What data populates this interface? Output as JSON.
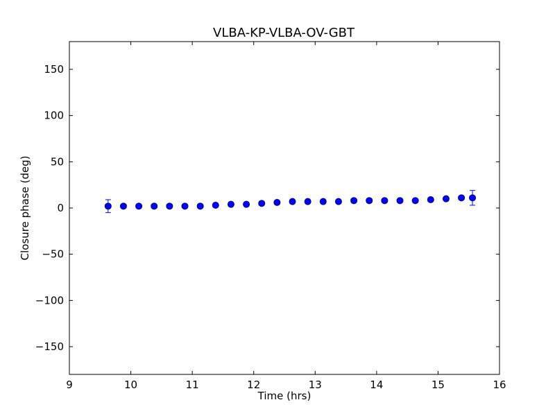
{
  "chart_data": {
    "type": "scatter",
    "title": "VLBA-KP-VLBA-OV-GBT",
    "xlabel": "Time (hrs)",
    "ylabel": "Closure phase (deg)",
    "xlim": [
      9,
      16
    ],
    "ylim": [
      -180,
      180
    ],
    "xticks": [
      9,
      10,
      11,
      12,
      13,
      14,
      15,
      16
    ],
    "xtick_labels": [
      "9",
      "10",
      "11",
      "12",
      "13",
      "14",
      "15",
      "16"
    ],
    "yticks": [
      -150,
      -100,
      -50,
      0,
      50,
      100,
      150
    ],
    "ytick_labels": [
      "−150",
      "−100",
      "−50",
      "0",
      "50",
      "100",
      "150"
    ],
    "grid": false,
    "marker_color": "#0000ff",
    "marker_edge_color": "#000080",
    "errorbar_color": "#0000ff",
    "series": [
      {
        "x": [
          9.63,
          9.88,
          10.13,
          10.38,
          10.63,
          10.88,
          11.13,
          11.38,
          11.63,
          11.88,
          12.13,
          12.38,
          12.63,
          12.88,
          13.13,
          13.38,
          13.63,
          13.88,
          14.13,
          14.38,
          14.63,
          14.88,
          15.13,
          15.38,
          15.56
        ],
        "y": [
          2,
          2,
          2,
          2,
          2,
          2,
          2,
          3,
          4,
          4,
          5,
          6,
          7,
          7,
          7,
          7,
          8,
          8,
          8,
          8,
          8,
          9,
          10,
          11,
          11
        ],
        "yerr": [
          7,
          2,
          2,
          2,
          2,
          2,
          2,
          2,
          2,
          2,
          2,
          2,
          2,
          2,
          2,
          2,
          2,
          2,
          2,
          2,
          2,
          2,
          2,
          2,
          8
        ]
      }
    ]
  }
}
